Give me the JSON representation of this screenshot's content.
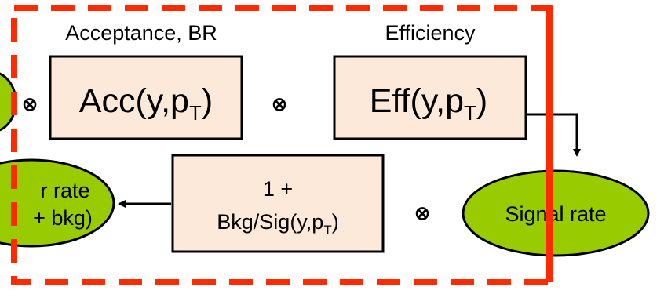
{
  "diagram": {
    "colors": {
      "box_fill": "#fde9d9",
      "ellipse_fill": "#99cc00",
      "dashed_border": "#ff2a00",
      "stroke": "#000000"
    },
    "left_ellipse_partial": {
      "line1": "r rate",
      "line2": "+ bkg)"
    },
    "tensor_symbol": "⊗",
    "acceptance": {
      "heading": "Acceptance, BR",
      "box": "Acc(y,p",
      "sub": "T",
      "close": ")"
    },
    "efficiency": {
      "heading": "Efficiency",
      "box": "Eff(y,p",
      "sub": "T",
      "close": ")"
    },
    "background": {
      "line1": "1 +",
      "line2": "Bkg/Sig(y,p",
      "sub": "T",
      "close": ")"
    },
    "signal": {
      "label": "Signal rate"
    }
  }
}
